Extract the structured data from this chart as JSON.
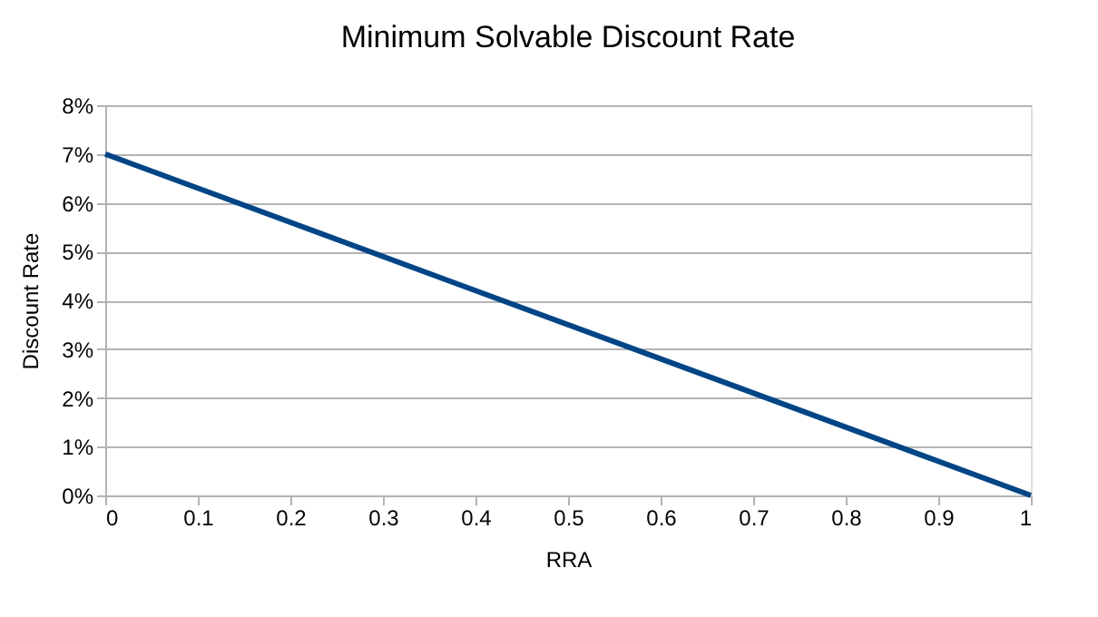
{
  "chart_data": {
    "type": "line",
    "title": "Minimum Solvable Discount Rate",
    "xlabel": "RRA",
    "ylabel": "Discount Rate",
    "x": [
      0,
      1
    ],
    "series": [
      {
        "color": "#004586",
        "values": [
          7,
          0
        ]
      }
    ],
    "xlim": [
      0,
      1
    ],
    "xticks": [
      0,
      0.1,
      0.2,
      0.3,
      0.4,
      0.5,
      0.6,
      0.7,
      0.8,
      0.9,
      1
    ],
    "ylim": [
      0,
      8
    ],
    "yticks": [
      {
        "value": 0,
        "label": "0%"
      },
      {
        "value": 1,
        "label": "1%"
      },
      {
        "value": 2,
        "label": "2%"
      },
      {
        "value": 3,
        "label": "3%"
      },
      {
        "value": 4,
        "label": "4%"
      },
      {
        "value": 5,
        "label": "5%"
      },
      {
        "value": 6,
        "label": "6%"
      },
      {
        "value": 7,
        "label": "7%"
      },
      {
        "value": 8,
        "label": "8%"
      }
    ],
    "grid": "y",
    "marker": "none",
    "line_style": "solid"
  }
}
